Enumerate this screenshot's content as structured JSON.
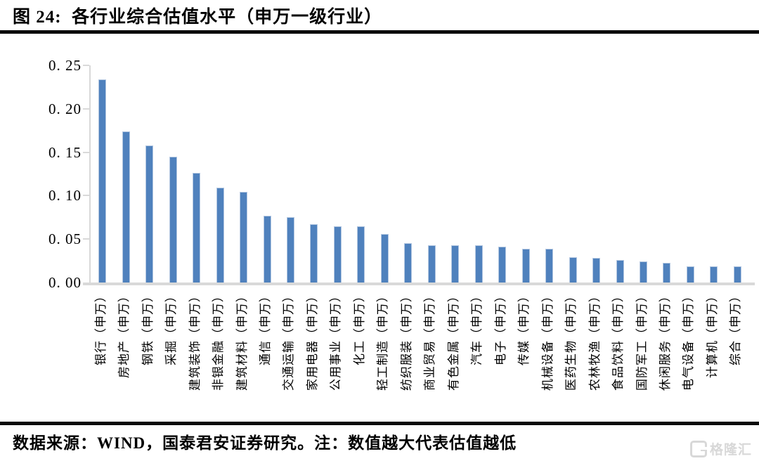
{
  "figure": {
    "title": "图 24:  各行业综合估值水平（申万一级行业）",
    "source_note": "数据来源：WIND，国泰君安证券研究。注：数值越大代表估值越低",
    "watermark": "格隆汇"
  },
  "chart_data": {
    "type": "bar",
    "title": "各行业综合估值水平（申万一级行业）",
    "categories": [
      "银行（申万）",
      "房地产（申万）",
      "钢铁（申万）",
      "采掘（申万）",
      "建筑装饰（申万）",
      "非银金融（申万）",
      "建筑材料（申万）",
      "通信（申万）",
      "交通运输（申万）",
      "家用电器（申万）",
      "公用事业（申万）",
      "化工（申万）",
      "轻工制造（申万）",
      "纺织服装（申万）",
      "商业贸易（申万）",
      "有色金属（申万）",
      "汽车（申万）",
      "电子（申万）",
      "传媒（申万）",
      "机械设备（申万）",
      "医药生物（申万）",
      "农林牧渔（申万）",
      "食品饮料（申万）",
      "国防军工（申万）",
      "休闲服务（申万）",
      "电气设备（申万）",
      "计算机（申万）",
      "综合（申万）"
    ],
    "values": [
      0.234,
      0.174,
      0.158,
      0.145,
      0.126,
      0.109,
      0.104,
      0.077,
      0.075,
      0.067,
      0.065,
      0.065,
      0.056,
      0.045,
      0.043,
      0.043,
      0.043,
      0.041,
      0.039,
      0.039,
      0.029,
      0.028,
      0.026,
      0.024,
      0.023,
      0.019,
      0.019,
      0.019
    ],
    "xlabel": "",
    "ylabel": "",
    "ylim": [
      0,
      0.25
    ],
    "y_ticks": [
      "0. 25",
      "0. 20",
      "0. 15",
      "0. 10",
      "0. 05",
      "0. 00"
    ],
    "y_tick_values": [
      0.25,
      0.2,
      0.15,
      0.1,
      0.05,
      0.0
    ],
    "bar_color": "#4f81bd",
    "axis_color": "#d9d9d9",
    "grid": false,
    "legend": "none"
  }
}
